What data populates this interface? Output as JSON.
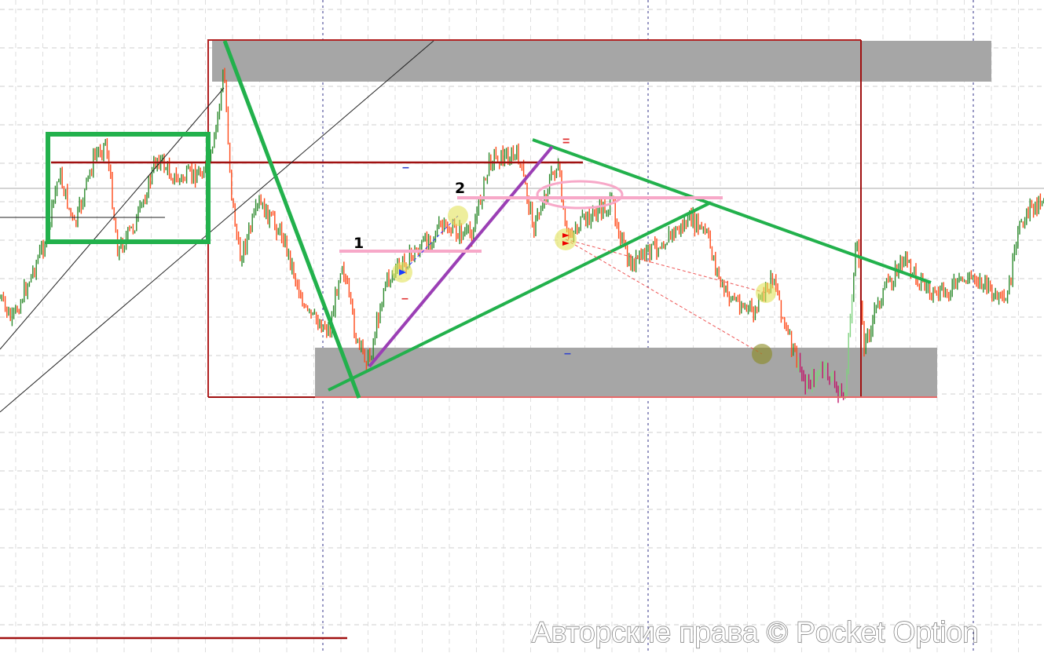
{
  "chart_data": {
    "type": "candlestick",
    "title": "",
    "xlabel": "",
    "ylabel": "",
    "grid": true,
    "candle_colors": {
      "up": "#2e8b2e",
      "down": "#ff4a1a",
      "strong_down": "#c0186a",
      "strong_up": "#7fd27f"
    },
    "annotations": {
      "labels": [
        "1",
        "2"
      ],
      "markers": {
        "blue_dash": "–",
        "red_equals": "=",
        "red_dash": "–"
      },
      "colors": {
        "green": "#22b14c",
        "purple": "#9b3fb5",
        "pink": "#f7a8c8",
        "zone": "#a6a6a6",
        "box": "#b22222",
        "level": "#a01010"
      }
    }
  },
  "watermark": "Авторские права © Pocket Option"
}
